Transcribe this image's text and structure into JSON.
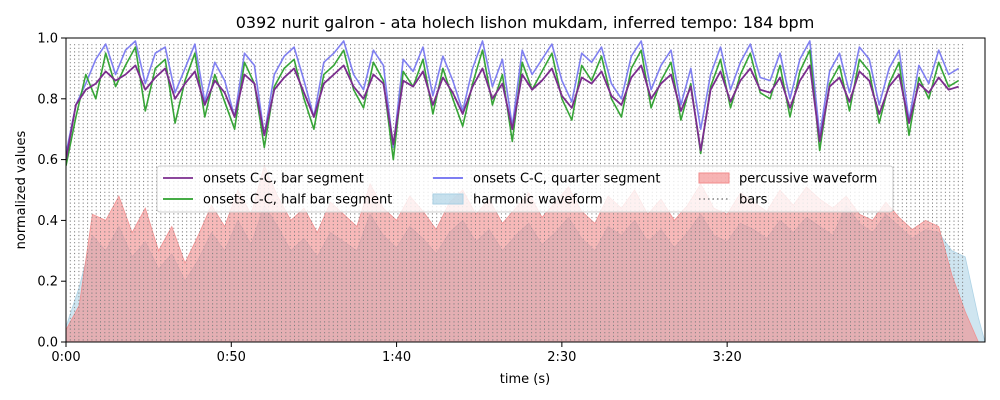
{
  "chart_data": {
    "type": "line",
    "title": "0392 nurit galron - ata holech lishon mukdam, inferred tempo: 184 bpm",
    "xlabel": "time (s)",
    "ylabel": "normalized values",
    "xlim": [
      0,
      278
    ],
    "ylim": [
      0,
      1
    ],
    "x_ticks": [
      {
        "value": 0,
        "label": "0:00"
      },
      {
        "value": 50,
        "label": "0:50"
      },
      {
        "value": 100,
        "label": "1:40"
      },
      {
        "value": 150,
        "label": "2:30"
      },
      {
        "value": 200,
        "label": "3:20"
      }
    ],
    "y_ticks": [
      {
        "value": 0,
        "label": "0.0"
      },
      {
        "value": 0.2,
        "label": "0.2"
      },
      {
        "value": 0.4,
        "label": "0.4"
      },
      {
        "value": 0.6,
        "label": "0.6"
      },
      {
        "value": 0.8,
        "label": "0.8"
      },
      {
        "value": 1.0,
        "label": "1.0"
      }
    ],
    "grid": false,
    "legend_position": "center",
    "bars": {
      "name": "bars",
      "start": 0,
      "end": 272,
      "interval": 1.304,
      "color": "#808080"
    },
    "series": [
      {
        "name": "onsets C-C, quarter segment",
        "kind": "line",
        "color": "#6b6bf0",
        "x": [
          0,
          3,
          6,
          9,
          12,
          15,
          18,
          21,
          24,
          27,
          30,
          33,
          36,
          39,
          42,
          45,
          48,
          51,
          54,
          57,
          60,
          63,
          66,
          69,
          72,
          75,
          78,
          81,
          84,
          87,
          90,
          93,
          96,
          99,
          102,
          105,
          108,
          111,
          114,
          117,
          120,
          123,
          126,
          129,
          132,
          135,
          138,
          141,
          144,
          147,
          150,
          153,
          156,
          159,
          162,
          165,
          168,
          171,
          174,
          177,
          180,
          183,
          186,
          189,
          192,
          195,
          198,
          201,
          204,
          207,
          210,
          213,
          216,
          219,
          222,
          225,
          228,
          231,
          234,
          237,
          240,
          243,
          246,
          249,
          252,
          255,
          258,
          261,
          264,
          267,
          270
        ],
        "values": [
          0.62,
          0.78,
          0.85,
          0.93,
          0.98,
          0.88,
          0.96,
          0.99,
          0.85,
          0.95,
          0.97,
          0.82,
          0.9,
          0.98,
          0.79,
          0.92,
          0.86,
          0.74,
          0.95,
          0.91,
          0.68,
          0.88,
          0.94,
          0.97,
          0.86,
          0.74,
          0.92,
          0.95,
          0.99,
          0.88,
          0.83,
          0.96,
          0.91,
          0.64,
          0.93,
          0.89,
          0.97,
          0.81,
          0.94,
          0.86,
          0.76,
          0.9,
          0.99,
          0.84,
          0.93,
          0.71,
          0.96,
          0.88,
          0.93,
          0.98,
          0.86,
          0.79,
          0.95,
          0.92,
          0.97,
          0.85,
          0.8,
          0.94,
          0.99,
          0.83,
          0.91,
          0.96,
          0.78,
          0.9,
          0.7,
          0.88,
          0.97,
          0.83,
          0.92,
          0.98,
          0.87,
          0.86,
          0.95,
          0.8,
          0.93,
          0.99,
          0.68,
          0.89,
          0.95,
          0.82,
          0.97,
          0.93,
          0.78,
          0.9,
          0.96,
          0.73,
          0.91,
          0.85,
          0.96,
          0.88,
          0.9
        ]
      },
      {
        "name": "onsets C-C, half bar segment",
        "kind": "line",
        "color": "#2ca02c",
        "x": [
          0,
          3,
          6,
          9,
          12,
          15,
          18,
          21,
          24,
          27,
          30,
          33,
          36,
          39,
          42,
          45,
          48,
          51,
          54,
          57,
          60,
          63,
          66,
          69,
          72,
          75,
          78,
          81,
          84,
          87,
          90,
          93,
          96,
          99,
          102,
          105,
          108,
          111,
          114,
          117,
          120,
          123,
          126,
          129,
          132,
          135,
          138,
          141,
          144,
          147,
          150,
          153,
          156,
          159,
          162,
          165,
          168,
          171,
          174,
          177,
          180,
          183,
          186,
          189,
          192,
          195,
          198,
          201,
          204,
          207,
          210,
          213,
          216,
          219,
          222,
          225,
          228,
          231,
          234,
          237,
          240,
          243,
          246,
          249,
          252,
          255,
          258,
          261,
          264,
          267,
          270
        ],
        "values": [
          0.58,
          0.74,
          0.88,
          0.8,
          0.95,
          0.84,
          0.91,
          0.97,
          0.76,
          0.9,
          0.93,
          0.72,
          0.86,
          0.95,
          0.74,
          0.88,
          0.79,
          0.7,
          0.92,
          0.85,
          0.64,
          0.84,
          0.9,
          0.93,
          0.8,
          0.7,
          0.88,
          0.91,
          0.96,
          0.83,
          0.77,
          0.92,
          0.86,
          0.6,
          0.89,
          0.84,
          0.93,
          0.75,
          0.9,
          0.8,
          0.71,
          0.85,
          0.96,
          0.78,
          0.88,
          0.66,
          0.92,
          0.83,
          0.89,
          0.95,
          0.8,
          0.73,
          0.91,
          0.86,
          0.94,
          0.8,
          0.74,
          0.9,
          0.96,
          0.77,
          0.86,
          0.92,
          0.73,
          0.85,
          0.62,
          0.84,
          0.93,
          0.77,
          0.88,
          0.95,
          0.82,
          0.8,
          0.91,
          0.74,
          0.89,
          0.96,
          0.63,
          0.85,
          0.91,
          0.76,
          0.93,
          0.89,
          0.72,
          0.85,
          0.92,
          0.68,
          0.87,
          0.8,
          0.92,
          0.84,
          0.86
        ]
      },
      {
        "name": "onsets C-C, bar segment",
        "kind": "line",
        "color": "#7b2d8e",
        "x": [
          0,
          3,
          6,
          9,
          12,
          15,
          18,
          21,
          24,
          27,
          30,
          33,
          36,
          39,
          42,
          45,
          48,
          51,
          54,
          57,
          60,
          63,
          66,
          69,
          72,
          75,
          78,
          81,
          84,
          87,
          90,
          93,
          96,
          99,
          102,
          105,
          108,
          111,
          114,
          117,
          120,
          123,
          126,
          129,
          132,
          135,
          138,
          141,
          144,
          147,
          150,
          153,
          156,
          159,
          162,
          165,
          168,
          171,
          174,
          177,
          180,
          183,
          186,
          189,
          192,
          195,
          198,
          201,
          204,
          207,
          210,
          213,
          216,
          219,
          222,
          225,
          228,
          231,
          234,
          237,
          240,
          243,
          246,
          249,
          252,
          255,
          258,
          261,
          264,
          267,
          270
        ],
        "values": [
          0.6,
          0.78,
          0.83,
          0.85,
          0.89,
          0.86,
          0.88,
          0.91,
          0.83,
          0.87,
          0.9,
          0.8,
          0.85,
          0.89,
          0.78,
          0.86,
          0.82,
          0.74,
          0.88,
          0.85,
          0.68,
          0.83,
          0.87,
          0.9,
          0.82,
          0.74,
          0.85,
          0.88,
          0.91,
          0.84,
          0.8,
          0.88,
          0.85,
          0.65,
          0.86,
          0.84,
          0.89,
          0.78,
          0.87,
          0.82,
          0.75,
          0.84,
          0.9,
          0.8,
          0.85,
          0.7,
          0.88,
          0.83,
          0.86,
          0.9,
          0.81,
          0.77,
          0.87,
          0.85,
          0.89,
          0.81,
          0.78,
          0.87,
          0.91,
          0.8,
          0.85,
          0.88,
          0.76,
          0.84,
          0.63,
          0.83,
          0.89,
          0.79,
          0.86,
          0.9,
          0.83,
          0.82,
          0.87,
          0.77,
          0.86,
          0.91,
          0.66,
          0.84,
          0.87,
          0.79,
          0.89,
          0.86,
          0.75,
          0.84,
          0.88,
          0.72,
          0.85,
          0.82,
          0.87,
          0.83,
          0.84
        ]
      },
      {
        "name": "harmonic waveform",
        "kind": "area",
        "color": "#a8cfe3",
        "x": [
          0,
          4,
          8,
          12,
          16,
          20,
          24,
          28,
          32,
          36,
          40,
          44,
          48,
          52,
          56,
          60,
          64,
          68,
          72,
          76,
          80,
          84,
          88,
          92,
          96,
          100,
          104,
          108,
          112,
          116,
          120,
          124,
          128,
          132,
          136,
          140,
          144,
          148,
          152,
          156,
          160,
          164,
          168,
          172,
          176,
          180,
          184,
          188,
          192,
          196,
          200,
          204,
          208,
          212,
          216,
          220,
          224,
          228,
          232,
          236,
          240,
          244,
          248,
          252,
          256,
          260,
          264,
          268,
          272,
          276,
          278
        ],
        "values": [
          0.05,
          0.18,
          0.35,
          0.3,
          0.38,
          0.28,
          0.33,
          0.24,
          0.29,
          0.2,
          0.27,
          0.36,
          0.3,
          0.4,
          0.32,
          0.45,
          0.38,
          0.3,
          0.34,
          0.28,
          0.36,
          0.33,
          0.3,
          0.42,
          0.35,
          0.31,
          0.38,
          0.34,
          0.29,
          0.36,
          0.4,
          0.33,
          0.37,
          0.3,
          0.35,
          0.39,
          0.32,
          0.36,
          0.41,
          0.34,
          0.3,
          0.38,
          0.35,
          0.4,
          0.33,
          0.37,
          0.31,
          0.36,
          0.42,
          0.35,
          0.33,
          0.39,
          0.37,
          0.34,
          0.4,
          0.36,
          0.41,
          0.38,
          0.35,
          0.45,
          0.39,
          0.36,
          0.42,
          0.38,
          0.34,
          0.37,
          0.36,
          0.3,
          0.28,
          0.08,
          0.0
        ]
      },
      {
        "name": "percussive waveform",
        "kind": "area",
        "color": "#f28b8b",
        "x": [
          0,
          4,
          8,
          12,
          16,
          20,
          24,
          28,
          32,
          36,
          40,
          44,
          48,
          52,
          56,
          60,
          64,
          68,
          72,
          76,
          80,
          84,
          88,
          92,
          96,
          100,
          104,
          108,
          112,
          116,
          120,
          124,
          128,
          132,
          136,
          140,
          144,
          148,
          152,
          156,
          160,
          164,
          168,
          172,
          176,
          180,
          184,
          188,
          192,
          196,
          200,
          204,
          208,
          212,
          216,
          220,
          224,
          228,
          232,
          236,
          240,
          244,
          248,
          252,
          256,
          260,
          264,
          268,
          272,
          276,
          278
        ],
        "values": [
          0.04,
          0.12,
          0.42,
          0.4,
          0.48,
          0.36,
          0.44,
          0.3,
          0.38,
          0.26,
          0.35,
          0.45,
          0.38,
          0.5,
          0.42,
          0.58,
          0.48,
          0.4,
          0.44,
          0.36,
          0.46,
          0.42,
          0.38,
          0.52,
          0.44,
          0.4,
          0.48,
          0.43,
          0.37,
          0.46,
          0.5,
          0.42,
          0.47,
          0.39,
          0.44,
          0.49,
          0.41,
          0.46,
          0.51,
          0.43,
          0.39,
          0.48,
          0.44,
          0.5,
          0.42,
          0.47,
          0.4,
          0.45,
          0.52,
          0.44,
          0.42,
          0.49,
          0.46,
          0.43,
          0.5,
          0.45,
          0.51,
          0.47,
          0.44,
          0.48,
          0.42,
          0.4,
          0.46,
          0.41,
          0.37,
          0.4,
          0.38,
          0.22,
          0.1,
          0.0,
          0.0
        ]
      }
    ],
    "legend": [
      {
        "label": "onsets C-C, bar segment",
        "kind": "line",
        "color": "#7b2d8e"
      },
      {
        "label": "onsets C-C, half bar segment",
        "kind": "line",
        "color": "#2ca02c"
      },
      {
        "label": "onsets C-C, quarter segment",
        "kind": "line",
        "color": "#6b6bf0"
      },
      {
        "label": "harmonic waveform",
        "kind": "patch",
        "color": "#a8cfe3"
      },
      {
        "label": "percussive waveform",
        "kind": "patch",
        "color": "#f28b8b"
      },
      {
        "label": "bars",
        "kind": "dotted",
        "color": "#808080"
      }
    ]
  }
}
